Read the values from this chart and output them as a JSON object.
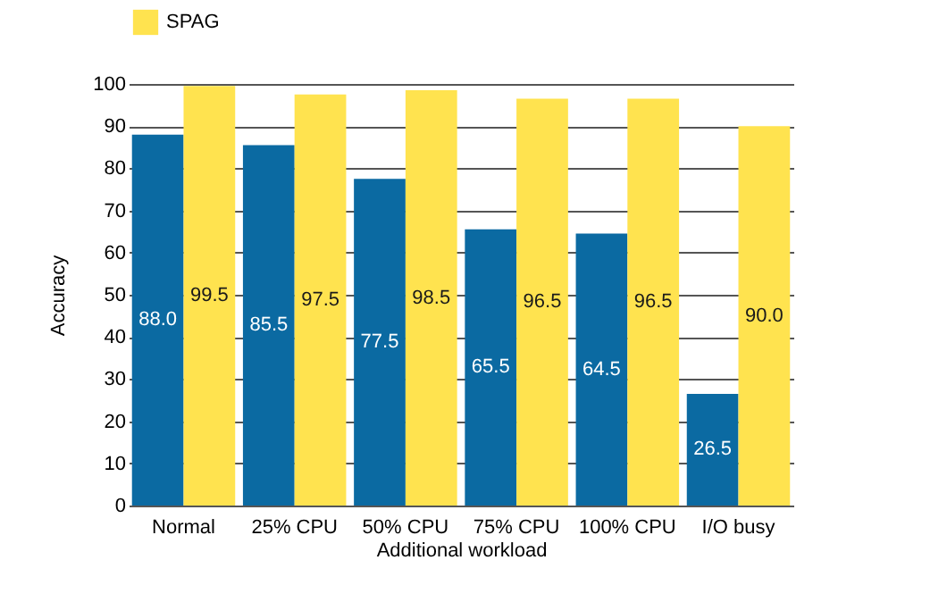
{
  "chart_data": {
    "type": "bar",
    "xlabel": "Additional workload",
    "ylabel": "Accuracy",
    "categories": [
      "Normal",
      "25% CPU",
      "50% CPU",
      "75% CPU",
      "100% CPU",
      "I/O busy"
    ],
    "series": [
      {
        "color": "#0b6aa2",
        "values": [
          88.0,
          85.5,
          77.5,
          65.5,
          64.5,
          26.5
        ],
        "value_labels": [
          "88.0",
          "85.5",
          "77.5",
          "65.5",
          "64.5",
          "26.5"
        ]
      },
      {
        "name": "SPAG",
        "color": "#ffe34f",
        "values": [
          99.5,
          97.5,
          98.5,
          96.5,
          96.5,
          90.0
        ],
        "value_labels": [
          "99.5",
          "97.5",
          "98.5",
          "96.5",
          "96.5",
          "90.0"
        ]
      }
    ],
    "ylim": [
      0,
      100
    ],
    "yticks": [
      0,
      10,
      20,
      30,
      40,
      50,
      60,
      70,
      80,
      90,
      100
    ],
    "grid": "y",
    "legend": "top left"
  }
}
